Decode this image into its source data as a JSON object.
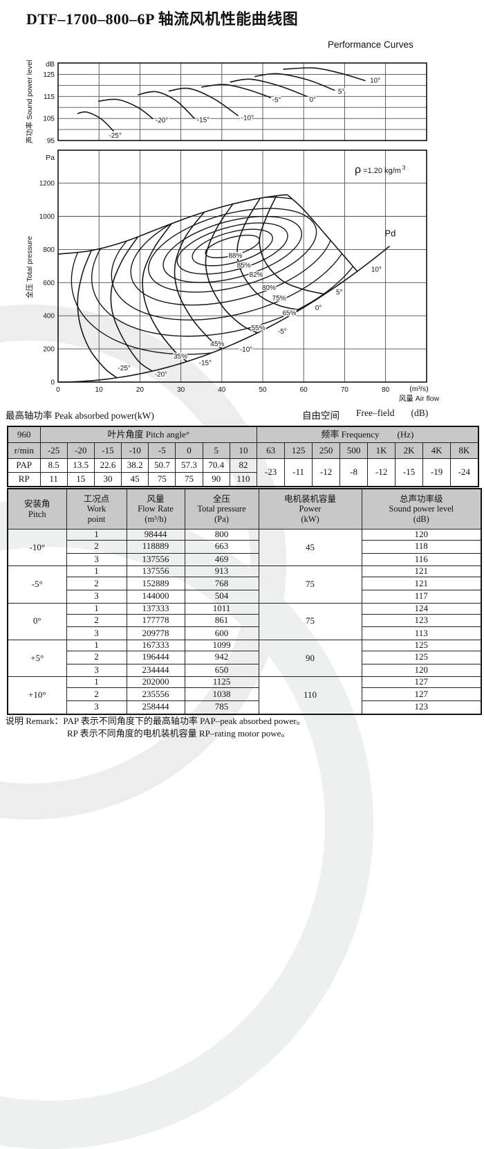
{
  "document": {
    "title": "DTF–1700–800–6P 轴流风机性能曲线图",
    "subtitle": "Performance Curves",
    "captions": {
      "peak_power": "最高轴功率 Peak absorbed power(kW)",
      "free_field_cn": "自由空间",
      "free_field_en": "Free–field",
      "free_field_unit": "(dB)"
    },
    "remark": {
      "line1": "说明 Remark：PAP 表示不同角度下的最高轴功率 PAP–peak absorbed power。",
      "line2": "RP 表示不同角度的电机装机容量 RP–rating motor powe。"
    }
  },
  "chart_data": [
    {
      "id": "sound-power-chart",
      "type": "line",
      "title": "声功率级曲线",
      "y_unit": "dB",
      "ylabel": "声功率 Sound power level",
      "ylim": [
        95,
        130
      ],
      "xlim": [
        0,
        90
      ],
      "y_ticks": [
        95,
        105,
        115,
        125
      ],
      "grid": true,
      "series": [
        {
          "name": "-25°",
          "points": [
            [
              4.7,
              107.2
            ],
            [
              7,
              107.9
            ],
            [
              10.5,
              104.8
            ],
            [
              13.6,
              99.2
            ]
          ],
          "label_at": [
            12.4,
            96.2
          ]
        },
        {
          "name": "-20°",
          "points": [
            [
              9.8,
              112.8
            ],
            [
              14.5,
              113.6
            ],
            [
              19.5,
              110
            ],
            [
              23.2,
              104.8
            ]
          ],
          "label_at": [
            23.8,
            103.2
          ]
        },
        {
          "name": "-15°",
          "points": [
            [
              19.5,
              115.7
            ],
            [
              24,
              117.1
            ],
            [
              29,
              112.8
            ],
            [
              33.3,
              105
            ]
          ],
          "label_at": [
            33.9,
            103.3
          ]
        },
        {
          "name": "-10°",
          "points": [
            [
              27,
              117.4
            ],
            [
              32,
              118.6
            ],
            [
              38,
              114
            ],
            [
              44,
              106.2
            ]
          ],
          "label_at": [
            44.7,
            104.3
          ]
        },
        {
          "name": "-5°",
          "points": [
            [
              35,
              119.2
            ],
            [
              40.5,
              120.4
            ],
            [
              46.5,
              118
            ],
            [
              52,
              114.4
            ]
          ],
          "label_at": [
            52.3,
            112.4
          ]
        },
        {
          "name": "0°",
          "points": [
            [
              42,
              121.5
            ],
            [
              47,
              122.8
            ],
            [
              54,
              119.8
            ],
            [
              60.8,
              115
            ]
          ],
          "label_at": [
            61.4,
            112.6
          ]
        },
        {
          "name": "5°",
          "points": [
            [
              48,
              124
            ],
            [
              53.5,
              125.3
            ],
            [
              61,
              122.5
            ],
            [
              67.6,
              117.7
            ]
          ],
          "label_at": [
            68.4,
            116.2
          ]
        },
        {
          "name": "10°",
          "points": [
            [
              55,
              127.3
            ],
            [
              62.5,
              127.9
            ],
            [
              69,
              125.5
            ],
            [
              75.1,
              122.1
            ]
          ],
          "label_at": [
            76.2,
            121.2
          ]
        }
      ]
    },
    {
      "id": "pressure-flow-chart",
      "type": "line",
      "title": "全压-风量性能曲线",
      "y_unit": "Pa",
      "ylabel": "全压 Total pressure",
      "xlabel_unit": "(m³/s)",
      "xlabel": "风量 Air flow",
      "density_sym": "ρ",
      "density_text": "=1.20 kg/m",
      "density_sup": "3",
      "pd_label": "Pd",
      "ylim": [
        0,
        1400
      ],
      "xlim": [
        0,
        90
      ],
      "y_ticks": [
        0,
        200,
        400,
        600,
        800,
        1000,
        1200
      ],
      "x_ticks": [
        0,
        10,
        20,
        30,
        40,
        50,
        60,
        70,
        80
      ],
      "grid": true,
      "stall_line": [
        [
          0,
          772
        ],
        [
          8,
          793
        ],
        [
          16,
          845
        ],
        [
          24,
          920
        ],
        [
          32,
          995
        ],
        [
          40,
          1057
        ],
        [
          48,
          1103
        ],
        [
          54,
          1126
        ],
        [
          56,
          1130
        ]
      ],
      "pd_curve": {
        "coeff": 0.125,
        "q_end": 81,
        "label_at": [
          79.8,
          878
        ]
      },
      "pitch_curves": [
        {
          "name": "-25°",
          "points": [
            [
              8.2,
              798
            ],
            [
              6,
              660
            ],
            [
              4.8,
              500
            ],
            [
              5.4,
              345
            ],
            [
              7.8,
              195
            ],
            [
              11.5,
              80
            ],
            [
              14.4,
              26
            ]
          ],
          "label_at": [
            14.6,
            72
          ]
        },
        {
          "name": "-20°",
          "points": [
            [
              19.5,
              876
            ],
            [
              15.8,
              740
            ],
            [
              13.2,
              580
            ],
            [
              13.2,
              430
            ],
            [
              15.5,
              280
            ],
            [
              19.5,
              130
            ],
            [
              23,
              66
            ]
          ],
          "label_at": [
            23.6,
            34
          ]
        },
        {
          "name": "-15°",
          "points": [
            [
              27.8,
              958
            ],
            [
              23.5,
              810
            ],
            [
              20.8,
              650
            ],
            [
              21.2,
              490
            ],
            [
              24,
              330
            ],
            [
              28.5,
              185
            ],
            [
              31.5,
              124
            ]
          ],
          "label_at": [
            34.4,
            102
          ]
        },
        {
          "name": "-10°",
          "points": [
            [
              35.8,
              1028
            ],
            [
              31.2,
              880
            ],
            [
              28.6,
              710
            ],
            [
              29.2,
              550
            ],
            [
              32.5,
              390
            ],
            [
              36.8,
              265
            ],
            [
              40,
              200
            ]
          ],
          "label_at": [
            44.4,
            184
          ]
        },
        {
          "name": "-5°",
          "points": [
            [
              42.8,
              1078
            ],
            [
              38.8,
              930
            ],
            [
              36.2,
              770
            ],
            [
              36.8,
              615
            ],
            [
              40.2,
              455
            ],
            [
              44.8,
              345
            ],
            [
              48.7,
              297
            ]
          ],
          "label_at": [
            53.7,
            293
          ]
        },
        {
          "name": "0°",
          "points": [
            [
              49.3,
              1106
            ],
            [
              45.8,
              960
            ],
            [
              43.8,
              810
            ],
            [
              44.8,
              665
            ],
            [
              48.8,
              530
            ],
            [
              54,
              462
            ],
            [
              59,
              435
            ]
          ],
          "label_at": [
            62.8,
            434
          ]
        },
        {
          "name": "5°",
          "points": [
            [
              53.3,
              1122
            ],
            [
              50.8,
              990
            ],
            [
              49.2,
              855
            ],
            [
              50.6,
              725
            ],
            [
              54.6,
              615
            ],
            [
              59.5,
              562
            ],
            [
              65.1,
              530
            ]
          ],
          "label_at": [
            67.9,
            528
          ]
        },
        {
          "name": "10°",
          "points": [
            [
              56,
              1130
            ],
            [
              59,
              1065
            ],
            [
              62,
              985
            ],
            [
              65.5,
              885
            ],
            [
              69,
              785
            ],
            [
              73.1,
              668
            ]
          ],
          "label_at": [
            76.5,
            666
          ]
        }
      ],
      "efficiency_contours": [
        {
          "name": "88%",
          "center": [
            42.6,
            818
          ],
          "rq": 6.8,
          "rpa": 54,
          "rot": -15,
          "label_at": [
            43.3,
            750
          ]
        },
        {
          "name": "85%",
          "center": [
            42.6,
            812
          ],
          "rq": 10.1,
          "rpa": 92,
          "rot": -15,
          "label_at": [
            45.4,
            692
          ]
        },
        {
          "name": "82%",
          "center": [
            42.6,
            806
          ],
          "rq": 13.9,
          "rpa": 130,
          "rot": -15,
          "label_at": [
            48.4,
            635
          ]
        },
        {
          "name": "80%",
          "center": [
            42.6,
            800
          ],
          "rq": 17.4,
          "rpa": 171,
          "rot": -15,
          "label_at": [
            51.5,
            555
          ]
        },
        {
          "name": "75%",
          "center": [
            42.6,
            795
          ],
          "rq": 21.1,
          "rpa": 221,
          "rot": -15,
          "label_at": [
            54,
            492
          ]
        },
        {
          "name": "65%",
          "center": [
            42.4,
            790
          ],
          "rq": 25.3,
          "rpa": 292,
          "rot": -15,
          "label_at": [
            56.5,
            403
          ]
        },
        {
          "name": "55%",
          "center": [
            42.2,
            785
          ],
          "rq": 29.9,
          "rpa": 376,
          "rot": -15,
          "label_at": [
            48.9,
            313
          ]
        },
        {
          "name": "45%",
          "center": [
            42,
            780
          ],
          "rq": 34.6,
          "rpa": 468,
          "rot": -15,
          "label_at": [
            38.9,
            218
          ]
        },
        {
          "name": "35%",
          "center": [
            41.8,
            775
          ],
          "rq": 39.4,
          "rpa": 572,
          "rot": -15,
          "label_at": [
            29.9,
            143
          ]
        }
      ]
    }
  ],
  "peak_power_table": {
    "corner_top": "960",
    "corner_bottom": "r/min",
    "pitch_header": "叶片角度 Pitch angle°",
    "freq_header": "频率 Frequency",
    "freq_unit": "(Hz)",
    "pitch_cols": [
      "-25",
      "-20",
      "-15",
      "-10",
      "-5",
      "0",
      "5",
      "10"
    ],
    "freq_cols": [
      "63",
      "125",
      "250",
      "500",
      "1K",
      "2K",
      "4K",
      "8K"
    ],
    "rows": [
      {
        "label": "PAP",
        "values": [
          "8.5",
          "13.5",
          "22.6",
          "38.2",
          "50.7",
          "57.3",
          "70.4",
          "82"
        ]
      },
      {
        "label": "RP",
        "values": [
          "11",
          "15",
          "30",
          "45",
          "75",
          "75",
          "90",
          "110"
        ]
      }
    ],
    "freq_values": [
      "-23",
      "-11",
      "-12",
      "-8",
      "-12",
      "-15",
      "-19",
      "-24"
    ]
  },
  "performance_table": {
    "headers": [
      [
        "安装角",
        "Pitch"
      ],
      [
        "工况点",
        "Work",
        "point"
      ],
      [
        "风量",
        "Flow Rate",
        "(m³/h)"
      ],
      [
        "全压",
        "Total pressure",
        "(Pa)"
      ],
      [
        "电机装机容量",
        "Power",
        "(kW)"
      ],
      [
        "总声功率级",
        "Sound power level",
        "(dB)"
      ]
    ],
    "groups": [
      {
        "pitch": "-10°",
        "power": "45",
        "rows": [
          [
            "1",
            "98444",
            "800",
            "120"
          ],
          [
            "2",
            "118889",
            "663",
            "118"
          ],
          [
            "3",
            "137556",
            "469",
            "116"
          ]
        ]
      },
      {
        "pitch": "-5°",
        "power": "75",
        "rows": [
          [
            "1",
            "137556",
            "913",
            "121"
          ],
          [
            "2",
            "152889",
            "768",
            "121"
          ],
          [
            "3",
            "144000",
            "504",
            "117"
          ]
        ]
      },
      {
        "pitch": "0°",
        "power": "75",
        "rows": [
          [
            "1",
            "137333",
            "1011",
            "124"
          ],
          [
            "2",
            "177778",
            "861",
            "123"
          ],
          [
            "3",
            "209778",
            "600",
            "113"
          ]
        ]
      },
      {
        "pitch": "+5°",
        "power": "90",
        "rows": [
          [
            "1",
            "167333",
            "1099",
            "125"
          ],
          [
            "2",
            "196444",
            "942",
            "125"
          ],
          [
            "3",
            "234444",
            "650",
            "120"
          ]
        ]
      },
      {
        "pitch": "+10°",
        "power": "110",
        "rows": [
          [
            "1",
            "202000",
            "1125",
            "127"
          ],
          [
            "2",
            "235556",
            "1038",
            "127"
          ],
          [
            "3",
            "258444",
            "785",
            "123"
          ]
        ]
      }
    ]
  }
}
